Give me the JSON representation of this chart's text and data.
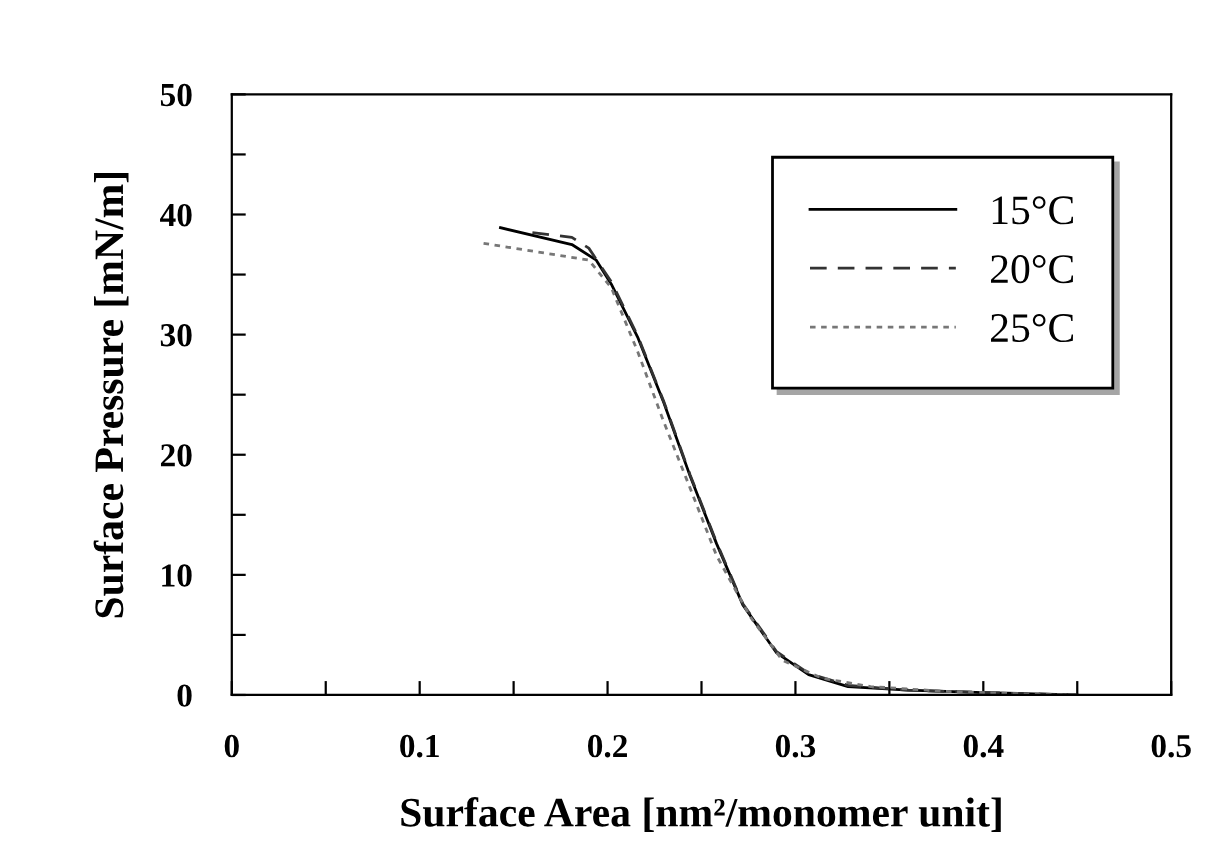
{
  "chart_data": {
    "type": "line",
    "xlabel": "Surface Area [nm²/monomer unit]",
    "ylabel": "Surface Pressure [mN/m]",
    "xlim": [
      0,
      0.5
    ],
    "ylim": [
      0,
      50
    ],
    "xticks": [
      0,
      {
        "value": 0.05,
        "label": null
      },
      0.1,
      {
        "value": 0.15,
        "label": null
      },
      0.2,
      {
        "value": 0.25,
        "label": null
      },
      0.3,
      {
        "value": 0.35,
        "label": null
      },
      0.4,
      {
        "value": 0.45,
        "label": null
      },
      0.5
    ],
    "yticks": [
      0,
      {
        "value": 5,
        "label": null
      },
      10,
      {
        "value": 15,
        "label": null
      },
      20,
      {
        "value": 25,
        "label": null
      },
      30,
      {
        "value": 35,
        "label": null
      },
      40,
      {
        "value": 45,
        "label": null
      },
      50
    ],
    "legend": "top right",
    "grid": false,
    "series": [
      {
        "name": "15°C",
        "color": "#000000",
        "line_style": "solid",
        "x": [
          0.143,
          0.181,
          0.194,
          0.202,
          0.216,
          0.23,
          0.244,
          0.258,
          0.272,
          0.29,
          0.307,
          0.328,
          0.36,
          0.4,
          0.45
        ],
        "values": [
          38.9,
          37.5,
          36.2,
          34.2,
          29.8,
          24.3,
          18.2,
          12.6,
          7.5,
          3.5,
          1.7,
          0.7,
          0.4,
          0.2,
          0
        ]
      },
      {
        "name": "20°C",
        "color": "#333333",
        "line_style": "dashed",
        "x": [
          0.16,
          0.181,
          0.19,
          0.202,
          0.216,
          0.23,
          0.244,
          0.258,
          0.272,
          0.29,
          0.307,
          0.328,
          0.36,
          0.4,
          0.45
        ],
        "values": [
          38.5,
          38.1,
          37.2,
          34.4,
          29.9,
          24.4,
          18.3,
          12.7,
          7.6,
          3.6,
          1.8,
          0.8,
          0.4,
          0.2,
          0
        ]
      },
      {
        "name": "25°C",
        "color": "#777777",
        "line_style": "dotted",
        "x": [
          0.134,
          0.19,
          0.202,
          0.216,
          0.23,
          0.244,
          0.258,
          0.276,
          0.293,
          0.314,
          0.34,
          0.38,
          0.42,
          0.45
        ],
        "values": [
          37.6,
          36.2,
          33.9,
          28.6,
          22.7,
          17.2,
          11.6,
          6.5,
          2.9,
          1.4,
          0.7,
          0.3,
          0.1,
          0
        ]
      }
    ]
  }
}
